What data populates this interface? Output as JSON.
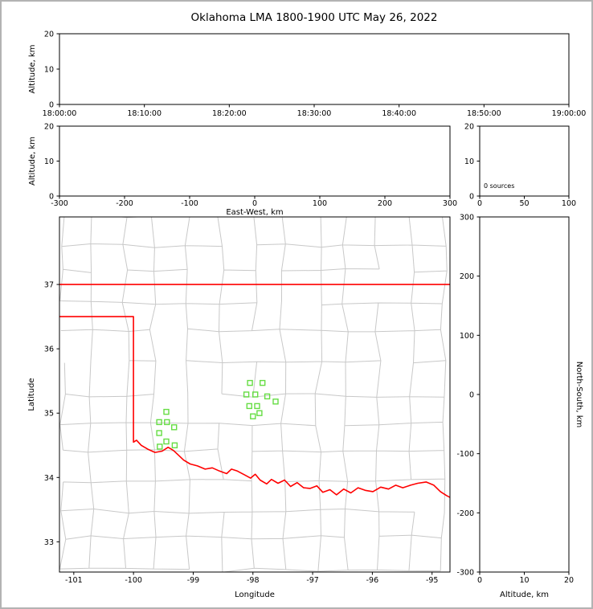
{
  "title": "Oklahoma LMA 1800-1900 UTC May 26, 2022",
  "colors": {
    "background": "#ffffff",
    "frame": "#000000",
    "county_line": "#c8c8c8",
    "state_border": "#ff0000",
    "station_marker": "#66dd44"
  },
  "chart_data": [
    {
      "id": "time_height",
      "type": "scatter",
      "title": "",
      "xlabel": "",
      "ylabel": "Altitude, km",
      "xticklabels": [
        "18:00:00",
        "18:10:00",
        "18:20:00",
        "18:30:00",
        "18:40:00",
        "18:50:00",
        "19:00:00"
      ],
      "yticks": [
        0,
        10,
        20
      ],
      "ylim": [
        0,
        20
      ],
      "grid": false,
      "points": []
    },
    {
      "id": "ew_height",
      "type": "scatter",
      "xlabel": "East-West, km",
      "ylabel": "Altitude, km",
      "xticks": [
        -300,
        -200,
        -100,
        0,
        100,
        200,
        300
      ],
      "xlim": [
        -300,
        300
      ],
      "yticks": [
        0,
        10,
        20
      ],
      "ylim": [
        0,
        20
      ],
      "grid": false,
      "points": []
    },
    {
      "id": "source_count_profile",
      "type": "line",
      "xticks": [
        0,
        50,
        100
      ],
      "xlim": [
        0,
        100
      ],
      "yticks": [
        0,
        10,
        20
      ],
      "ylim": [
        0,
        20
      ],
      "annotation": "0 sources",
      "grid": false,
      "points": []
    },
    {
      "id": "plan_view_map",
      "type": "scatter",
      "xlabel": "Longitude",
      "ylabel": "Latitude",
      "xticks": [
        -101,
        -100,
        -99,
        -98,
        -97,
        -96,
        -95
      ],
      "xlim": [
        -101.24,
        -94.7
      ],
      "yticks": [
        33,
        34,
        35,
        36,
        37
      ],
      "ylim": [
        32.53,
        38.05
      ],
      "grid": false,
      "stations_lon_lat": [
        [
          -99.45,
          35.02
        ],
        [
          -99.57,
          34.86
        ],
        [
          -99.44,
          34.86
        ],
        [
          -99.32,
          34.78
        ],
        [
          -99.57,
          34.69
        ],
        [
          -99.45,
          34.56
        ],
        [
          -99.56,
          34.48
        ],
        [
          -99.31,
          34.5
        ],
        [
          -98.05,
          35.47
        ],
        [
          -97.84,
          35.47
        ],
        [
          -98.11,
          35.29
        ],
        [
          -97.96,
          35.29
        ],
        [
          -97.76,
          35.26
        ],
        [
          -98.06,
          35.11
        ],
        [
          -97.93,
          35.11
        ],
        [
          -97.62,
          35.18
        ],
        [
          -98.0,
          34.95
        ],
        [
          -97.89,
          35.0
        ]
      ],
      "state_border": {
        "north": [
          [
            -101.24,
            37.0
          ],
          [
            -94.7,
            37.0
          ]
        ],
        "west_and_south": [
          [
            -101.24,
            36.5
          ],
          [
            -100.0,
            36.5
          ],
          [
            -100.0,
            34.55
          ],
          [
            -99.95,
            34.58
          ],
          [
            -99.87,
            34.5
          ],
          [
            -99.76,
            34.44
          ],
          [
            -99.64,
            34.39
          ],
          [
            -99.52,
            34.41
          ],
          [
            -99.42,
            34.47
          ],
          [
            -99.33,
            34.42
          ],
          [
            -99.25,
            34.35
          ],
          [
            -99.16,
            34.27
          ],
          [
            -99.05,
            34.21
          ],
          [
            -98.93,
            34.18
          ],
          [
            -98.8,
            34.13
          ],
          [
            -98.68,
            34.15
          ],
          [
            -98.56,
            34.1
          ],
          [
            -98.44,
            34.06
          ],
          [
            -98.36,
            34.13
          ],
          [
            -98.26,
            34.1
          ],
          [
            -98.14,
            34.04
          ],
          [
            -98.04,
            33.99
          ],
          [
            -97.96,
            34.05
          ],
          [
            -97.88,
            33.96
          ],
          [
            -97.77,
            33.9
          ],
          [
            -97.69,
            33.97
          ],
          [
            -97.58,
            33.91
          ],
          [
            -97.47,
            33.96
          ],
          [
            -97.37,
            33.86
          ],
          [
            -97.26,
            33.92
          ],
          [
            -97.15,
            33.84
          ],
          [
            -97.04,
            33.83
          ],
          [
            -96.93,
            33.87
          ],
          [
            -96.83,
            33.77
          ],
          [
            -96.71,
            33.81
          ],
          [
            -96.6,
            33.73
          ],
          [
            -96.48,
            33.82
          ],
          [
            -96.36,
            33.76
          ],
          [
            -96.24,
            33.84
          ],
          [
            -96.12,
            33.8
          ],
          [
            -95.99,
            33.78
          ],
          [
            -95.86,
            33.85
          ],
          [
            -95.73,
            33.82
          ],
          [
            -95.61,
            33.88
          ],
          [
            -95.49,
            33.84
          ],
          [
            -95.36,
            33.88
          ],
          [
            -95.24,
            33.91
          ],
          [
            -95.1,
            33.93
          ],
          [
            -94.97,
            33.88
          ],
          [
            -94.86,
            33.78
          ],
          [
            -94.76,
            33.72
          ],
          [
            -94.7,
            33.69
          ]
        ]
      },
      "points": []
    },
    {
      "id": "ns_height",
      "type": "scatter",
      "xlabel": "Altitude, km",
      "ylabel_right": "North-South, km",
      "xticks": [
        0,
        10,
        20
      ],
      "xlim": [
        0,
        20
      ],
      "yticks": [
        300,
        200,
        100,
        0,
        -100,
        -200,
        -300
      ],
      "ylim": [
        -300,
        300
      ],
      "grid": false,
      "points": []
    }
  ]
}
